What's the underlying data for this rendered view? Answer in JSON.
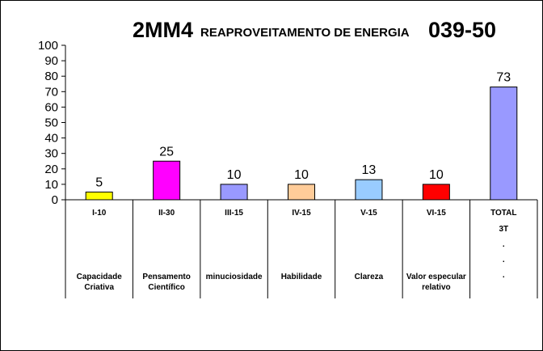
{
  "chart_data": {
    "type": "bar",
    "title": {
      "code": "2MM4",
      "subtitle": "REAPROVEITAMENTO DE ENERGIA",
      "number": "039-50"
    },
    "xlabel": "",
    "ylabel": "",
    "ylim": [
      0,
      100
    ],
    "yticks": [
      0,
      10,
      20,
      30,
      40,
      50,
      60,
      70,
      80,
      90,
      100
    ],
    "grid": false,
    "categories": [
      {
        "code": "I-10",
        "lines": [
          "Capacidade",
          "Criativa"
        ],
        "value": 5,
        "color": "#ffff00"
      },
      {
        "code": "II-30",
        "lines": [
          "Pensamento",
          "Científico"
        ],
        "value": 25,
        "color": "#ff00ff"
      },
      {
        "code": "III-15",
        "lines": [
          "minuciosidade"
        ],
        "value": 10,
        "color": "#9999ff"
      },
      {
        "code": "IV-15",
        "lines": [
          "Habilidade"
        ],
        "value": 10,
        "color": "#ffcc99"
      },
      {
        "code": "V-15",
        "lines": [
          "Clareza"
        ],
        "value": 13,
        "color": "#99ccff"
      },
      {
        "code": "VI-15",
        "lines": [
          "Valor especular",
          "relativo"
        ],
        "value": 10,
        "color": "#ff0000"
      },
      {
        "code": "TOTAL",
        "lines": [
          "3T",
          ".",
          ".",
          "."
        ],
        "value": 73,
        "color": "#9999ff"
      }
    ]
  }
}
